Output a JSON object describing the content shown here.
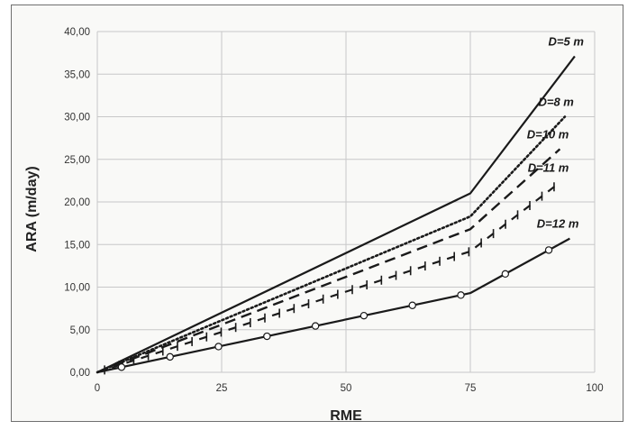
{
  "chart_data": {
    "type": "line",
    "title": "",
    "xlabel": "RME",
    "ylabel": "ARA (m/day)",
    "xlim": [
      0,
      100
    ],
    "ylim": [
      0,
      40
    ],
    "x_ticks": [
      "0",
      "25",
      "50",
      "75",
      "100"
    ],
    "y_ticks": [
      "0,00",
      "5,00",
      "10,00",
      "15,00",
      "20,00",
      "25,00",
      "30,00",
      "35,00",
      "40,00"
    ],
    "grid": true,
    "colors": {
      "line": "#1a1a1a",
      "grid": "#c8c8c8",
      "background": "#f9f9f7"
    },
    "series": [
      {
        "name": "D=5 m",
        "style": "solid",
        "points": [
          [
            0,
            0
          ],
          [
            75,
            21.0
          ],
          [
            96,
            37.1
          ]
        ]
      },
      {
        "name": "D=8 m",
        "style": "dotted",
        "points": [
          [
            0,
            0
          ],
          [
            75,
            18.3
          ],
          [
            94,
            30.0
          ]
        ]
      },
      {
        "name": "D=10 m",
        "style": "dashed",
        "points": [
          [
            0,
            0
          ],
          [
            75,
            16.8
          ],
          [
            93,
            26.2
          ]
        ]
      },
      {
        "name": "D=11 m",
        "style": "dash-cross",
        "points": [
          [
            0,
            0
          ],
          [
            75,
            14.2
          ],
          [
            93,
            22.3
          ]
        ]
      },
      {
        "name": "D=12 m",
        "style": "solid-circles",
        "points": [
          [
            0,
            0
          ],
          [
            75,
            9.3
          ],
          [
            95,
            15.7
          ]
        ]
      }
    ]
  }
}
